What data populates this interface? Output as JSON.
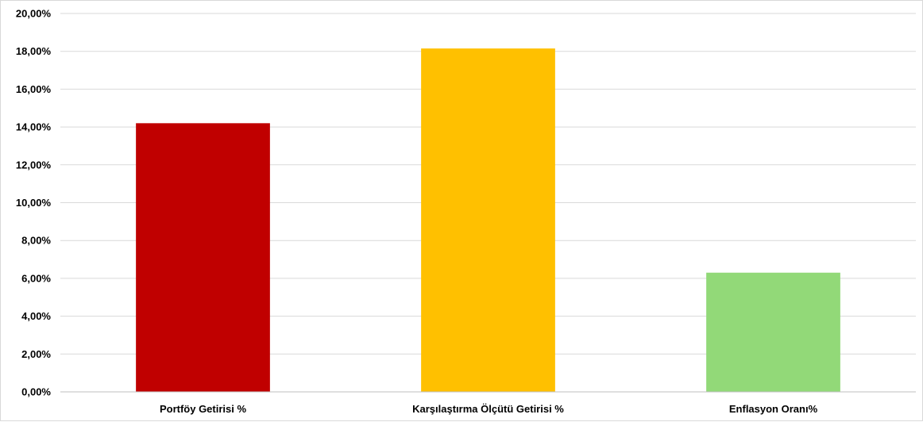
{
  "chart_data": {
    "type": "bar",
    "categories": [
      "Portföy Getirisi %",
      "Karşılaştırma Ölçütü Getirisi %",
      "Enflasyon Oranı%"
    ],
    "values": [
      14.2,
      18.15,
      6.3
    ],
    "colors": [
      "#c00000",
      "#ffc000",
      "#92d978"
    ],
    "title": "",
    "xlabel": "",
    "ylabel": "",
    "ylim": [
      0,
      20
    ],
    "ytick_step": 2,
    "ytick_labels": [
      "0,00%",
      "2,00%",
      "4,00%",
      "6,00%",
      "8,00%",
      "10,00%",
      "12,00%",
      "14,00%",
      "16,00%",
      "18,00%",
      "20,00%"
    ],
    "grid": true,
    "legend": "none"
  }
}
